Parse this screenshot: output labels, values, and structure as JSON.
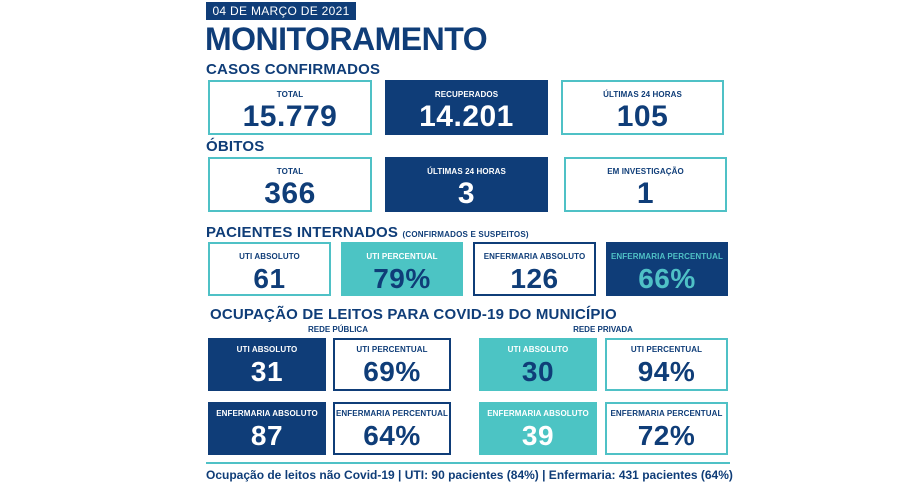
{
  "date_banner": "04 DE MARÇO DE 2021",
  "title": "MONITORAMENTO",
  "casos": {
    "title": "CASOS CONFIRMADOS",
    "total": {
      "label": "TOTAL",
      "value": "15.779"
    },
    "recuperados": {
      "label": "RECUPERADOS",
      "value": "14.201"
    },
    "ultimas24": {
      "label": "ÚLTIMAS 24 HORAS",
      "value": "105"
    }
  },
  "obitos": {
    "title": "ÓBITOS",
    "total": {
      "label": "TOTAL",
      "value": "366"
    },
    "ultimas24": {
      "label": "ÚLTIMAS 24 HORAS",
      "value": "3"
    },
    "investigacao": {
      "label": "EM INVESTIGAÇÃO",
      "value": "1"
    }
  },
  "internados": {
    "title": "PACIENTES INTERNADOS",
    "note": "(CONFIRMADOS E SUSPEITOS)",
    "uti_abs": {
      "label": "UTI ABSOLUTO",
      "value": "61"
    },
    "uti_pct": {
      "label": "UTI PERCENTUAL",
      "value": "79%"
    },
    "enf_abs": {
      "label": "ENFERMARIA ABSOLUTO",
      "value": "126"
    },
    "enf_pct": {
      "label": "ENFERMARIA PERCENTUAL",
      "value": "66%"
    }
  },
  "ocupacao": {
    "title": "OCUPAÇÃO DE LEITOS PARA COVID-19 DO MUNICÍPIO",
    "publica": {
      "label": "REDE PÚBLICA",
      "uti_abs": {
        "label": "UTI ABSOLUTO",
        "value": "31"
      },
      "uti_pct": {
        "label": "UTI PERCENTUAL",
        "value": "69%"
      },
      "enf_abs": {
        "label": "ENFERMARIA ABSOLUTO",
        "value": "87"
      },
      "enf_pct": {
        "label": "ENFERMARIA PERCENTUAL",
        "value": "64%"
      }
    },
    "privada": {
      "label": "REDE PRIVADA",
      "uti_abs": {
        "label": "UTI ABSOLUTO",
        "value": "30"
      },
      "uti_pct": {
        "label": "UTI PERCENTUAL",
        "value": "94%"
      },
      "enf_abs": {
        "label": "ENFERMARIA ABSOLUTO",
        "value": "39"
      },
      "enf_pct": {
        "label": "ENFERMARIA PERCENTUAL",
        "value": "72%"
      }
    }
  },
  "footer": "Ocupação de leitos não Covid-19 | UTI: 90 pacientes (84%) | Enfermaria: 431 pacientes (64%)",
  "colors": {
    "navy": "#0f3d78",
    "teal": "#4fc1c6",
    "white": "#ffffff"
  }
}
